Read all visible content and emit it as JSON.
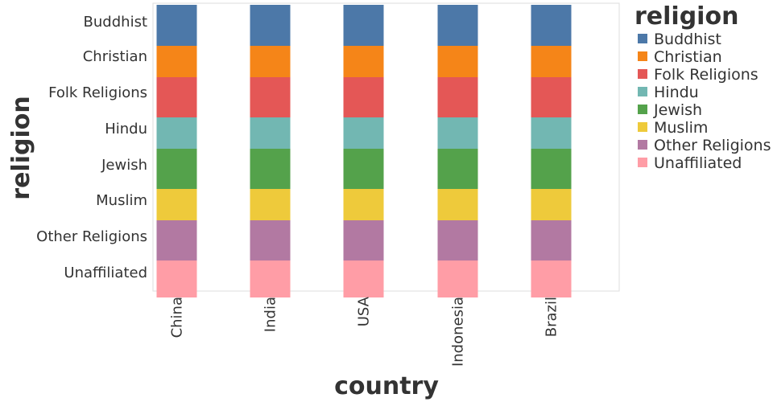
{
  "chart_data": {
    "type": "bar",
    "title": "",
    "xlabel": "country",
    "ylabel": "religion",
    "categories": [
      "China",
      "India",
      "USA",
      "Indonesia",
      "Brazil"
    ],
    "religions": [
      "Buddhist",
      "Christian",
      "Folk Religions",
      "Hindu",
      "Jewish",
      "Muslim",
      "Other Religions",
      "Unaffiliated"
    ],
    "series": [
      {
        "name": "Buddhist",
        "color": "#4c78a8",
        "values": [
          "Buddhist",
          "Buddhist",
          "Buddhist",
          "Buddhist",
          "Buddhist"
        ]
      },
      {
        "name": "Christian",
        "color": "#f58518",
        "values": [
          "Christian",
          "Christian",
          "Christian",
          "Christian",
          "Christian"
        ]
      },
      {
        "name": "Folk Religions",
        "color": "#e45756",
        "values": [
          "Folk Religions",
          "Folk Religions",
          "Folk Religions",
          "Folk Religions",
          "Folk Religions"
        ]
      },
      {
        "name": "Hindu",
        "color": "#72b7b2",
        "values": [
          "Hindu",
          "Hindu",
          "Hindu",
          "Hindu",
          "Hindu"
        ]
      },
      {
        "name": "Jewish",
        "color": "#54a24b",
        "values": [
          "Jewish",
          "Jewish",
          "Jewish",
          "Jewish",
          "Jewish"
        ]
      },
      {
        "name": "Muslim",
        "color": "#eeca3b",
        "values": [
          "Muslim",
          "Muslim",
          "Muslim",
          "Muslim",
          "Muslim"
        ]
      },
      {
        "name": "Other Religions",
        "color": "#b279a2",
        "values": [
          "Other Religions",
          "Other Religions",
          "Other Religions",
          "Other Religions",
          "Other Religions"
        ]
      },
      {
        "name": "Unaffiliated",
        "color": "#ff9da6",
        "values": [
          "Unaffiliated",
          "Unaffiliated",
          "Unaffiliated",
          "Unaffiliated",
          "Unaffiliated"
        ]
      }
    ],
    "legend": {
      "title": "religion",
      "position": "right"
    },
    "grid": false
  }
}
